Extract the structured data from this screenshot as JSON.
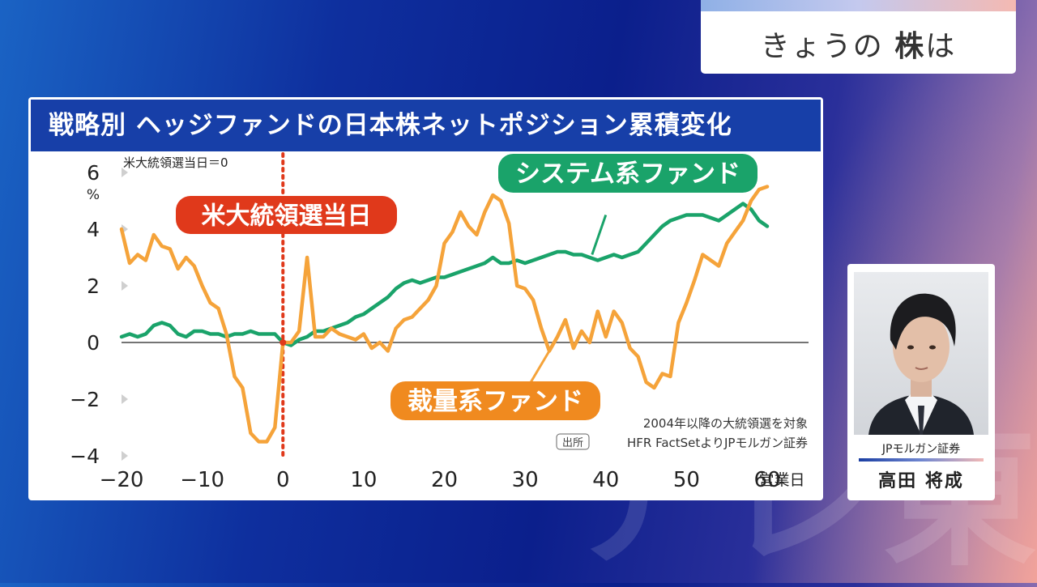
{
  "corner_title": {
    "prefix": "きょうの ",
    "bold": "株",
    "suffix": "は"
  },
  "watermark": "テレ東",
  "chart_data": {
    "type": "line",
    "title": "戦略別 ヘッジファンドの日本株ネットポジション累積変化",
    "note": "米大統領選当日＝0",
    "y_unit": "%",
    "x_unit_label": "営業日",
    "ylim": [
      -4,
      6
    ],
    "xlim": [
      -20,
      60
    ],
    "y_ticks": [
      6,
      4,
      2,
      0,
      -2,
      -4
    ],
    "y_tick_labels": [
      "6",
      "4",
      "2",
      "0",
      "−2",
      "−4"
    ],
    "x_ticks": [
      -20,
      -10,
      0,
      10,
      20,
      30,
      40,
      50,
      60
    ],
    "x_tick_labels": [
      "−20",
      "−10",
      "0",
      "10",
      "20",
      "30",
      "40",
      "50",
      "60"
    ],
    "event_label": "米大統領選当日",
    "event_x": 0,
    "source_line1": "2004年以降の大統領選を対象",
    "source_tag": "出所",
    "source_line2": "HFR FactSetよりJPモルガン証券",
    "series": [
      {
        "name": "システム系ファンド",
        "color": "#1aa36a",
        "points": [
          [
            -20,
            0.2
          ],
          [
            -19,
            0.3
          ],
          [
            -18,
            0.2
          ],
          [
            -17,
            0.3
          ],
          [
            -16,
            0.6
          ],
          [
            -15,
            0.7
          ],
          [
            -14,
            0.6
          ],
          [
            -13,
            0.3
          ],
          [
            -12,
            0.2
          ],
          [
            -11,
            0.4
          ],
          [
            -10,
            0.4
          ],
          [
            -9,
            0.3
          ],
          [
            -8,
            0.3
          ],
          [
            -7,
            0.2
          ],
          [
            -6,
            0.3
          ],
          [
            -5,
            0.3
          ],
          [
            -4,
            0.4
          ],
          [
            -3,
            0.3
          ],
          [
            -2,
            0.3
          ],
          [
            -1,
            0.3
          ],
          [
            0,
            0
          ],
          [
            1,
            -0.1
          ],
          [
            2,
            0.1
          ],
          [
            3,
            0.2
          ],
          [
            4,
            0.4
          ],
          [
            5,
            0.4
          ],
          [
            6,
            0.5
          ],
          [
            7,
            0.6
          ],
          [
            8,
            0.7
          ],
          [
            9,
            0.9
          ],
          [
            10,
            1.0
          ],
          [
            11,
            1.2
          ],
          [
            12,
            1.4
          ],
          [
            13,
            1.6
          ],
          [
            14,
            1.9
          ],
          [
            15,
            2.1
          ],
          [
            16,
            2.2
          ],
          [
            17,
            2.1
          ],
          [
            18,
            2.2
          ],
          [
            19,
            2.3
          ],
          [
            20,
            2.3
          ],
          [
            21,
            2.4
          ],
          [
            22,
            2.5
          ],
          [
            23,
            2.6
          ],
          [
            24,
            2.7
          ],
          [
            25,
            2.8
          ],
          [
            26,
            3.0
          ],
          [
            27,
            2.8
          ],
          [
            28,
            2.8
          ],
          [
            29,
            2.9
          ],
          [
            30,
            2.8
          ],
          [
            31,
            2.9
          ],
          [
            32,
            3.0
          ],
          [
            33,
            3.1
          ],
          [
            34,
            3.2
          ],
          [
            35,
            3.2
          ],
          [
            36,
            3.1
          ],
          [
            37,
            3.1
          ],
          [
            38,
            3.0
          ],
          [
            39,
            2.9
          ],
          [
            40,
            3.0
          ],
          [
            41,
            3.1
          ],
          [
            42,
            3.0
          ],
          [
            43,
            3.1
          ],
          [
            44,
            3.2
          ],
          [
            45,
            3.5
          ],
          [
            46,
            3.8
          ],
          [
            47,
            4.1
          ],
          [
            48,
            4.3
          ],
          [
            49,
            4.4
          ],
          [
            50,
            4.5
          ],
          [
            51,
            4.5
          ],
          [
            52,
            4.5
          ],
          [
            53,
            4.4
          ],
          [
            54,
            4.3
          ],
          [
            55,
            4.5
          ],
          [
            56,
            4.7
          ],
          [
            57,
            4.9
          ],
          [
            58,
            4.7
          ],
          [
            59,
            4.3
          ],
          [
            60,
            4.1
          ]
        ]
      },
      {
        "name": "裁量系ファンド",
        "color": "#f5a33a",
        "points": [
          [
            -20,
            4.0
          ],
          [
            -19,
            2.8
          ],
          [
            -18,
            3.1
          ],
          [
            -17,
            2.9
          ],
          [
            -16,
            3.8
          ],
          [
            -15,
            3.4
          ],
          [
            -14,
            3.3
          ],
          [
            -13,
            2.6
          ],
          [
            -12,
            3.0
          ],
          [
            -11,
            2.7
          ],
          [
            -10,
            2.0
          ],
          [
            -9,
            1.4
          ],
          [
            -8,
            1.2
          ],
          [
            -7,
            0.3
          ],
          [
            -6,
            -1.2
          ],
          [
            -5,
            -1.6
          ],
          [
            -4,
            -3.2
          ],
          [
            -3,
            -3.5
          ],
          [
            -2,
            -3.5
          ],
          [
            -1,
            -3.0
          ],
          [
            0,
            0
          ],
          [
            1,
            0.0
          ],
          [
            2,
            0.4
          ],
          [
            3,
            3.0
          ],
          [
            4,
            0.2
          ],
          [
            5,
            0.2
          ],
          [
            6,
            0.5
          ],
          [
            7,
            0.3
          ],
          [
            8,
            0.2
          ],
          [
            9,
            0.1
          ],
          [
            10,
            0.3
          ],
          [
            11,
            -0.2
          ],
          [
            12,
            0.0
          ],
          [
            13,
            -0.3
          ],
          [
            14,
            0.5
          ],
          [
            15,
            0.8
          ],
          [
            16,
            0.9
          ],
          [
            17,
            1.2
          ],
          [
            18,
            1.5
          ],
          [
            19,
            2.0
          ],
          [
            20,
            3.5
          ],
          [
            21,
            3.9
          ],
          [
            22,
            4.6
          ],
          [
            23,
            4.1
          ],
          [
            24,
            3.8
          ],
          [
            25,
            4.6
          ],
          [
            26,
            5.2
          ],
          [
            27,
            5.0
          ],
          [
            28,
            4.2
          ],
          [
            29,
            2.0
          ],
          [
            30,
            1.9
          ],
          [
            31,
            1.5
          ],
          [
            32,
            0.5
          ],
          [
            33,
            -0.3
          ],
          [
            34,
            0.2
          ],
          [
            35,
            0.8
          ],
          [
            36,
            -0.2
          ],
          [
            37,
            0.4
          ],
          [
            38,
            0.0
          ],
          [
            39,
            1.1
          ],
          [
            40,
            0.2
          ],
          [
            41,
            1.1
          ],
          [
            42,
            0.7
          ],
          [
            43,
            -0.2
          ],
          [
            44,
            -0.5
          ],
          [
            45,
            -1.4
          ],
          [
            46,
            -1.6
          ],
          [
            47,
            -1.1
          ],
          [
            48,
            -1.2
          ],
          [
            49,
            0.7
          ],
          [
            50,
            1.4
          ],
          [
            51,
            2.2
          ],
          [
            52,
            3.1
          ],
          [
            53,
            2.9
          ],
          [
            54,
            2.7
          ],
          [
            55,
            3.5
          ],
          [
            56,
            3.9
          ],
          [
            57,
            4.3
          ],
          [
            58,
            5.0
          ],
          [
            59,
            5.4
          ],
          [
            60,
            5.5
          ]
        ]
      }
    ]
  },
  "profile": {
    "company": "JPモルガン証券",
    "name": "高田 将成"
  }
}
